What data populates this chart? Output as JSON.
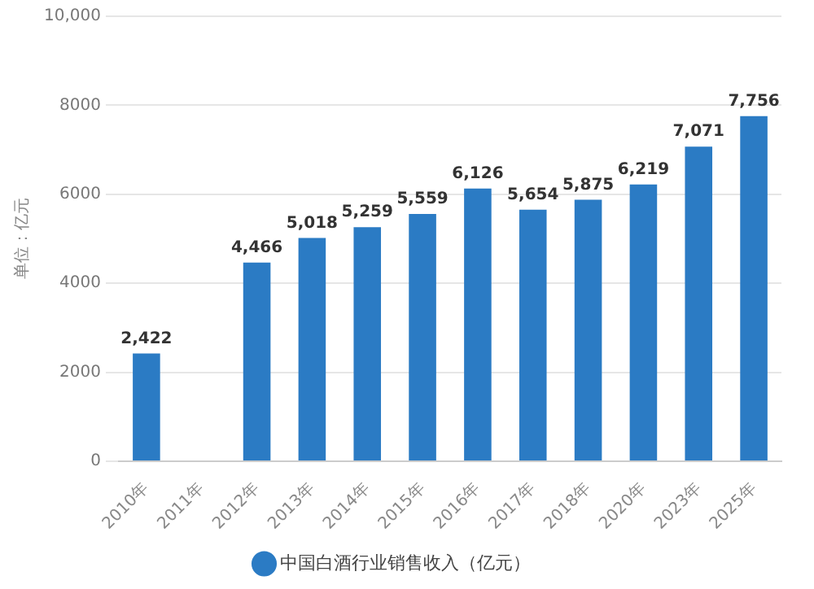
{
  "chart_data": {
    "type": "bar",
    "ylabel": "单位：亿元",
    "categories": [
      "2010年",
      "2011年",
      "2012年",
      "2013年",
      "2014年",
      "2015年",
      "2016年",
      "2017年",
      "2018年",
      "2020年",
      "2023年",
      "2025年"
    ],
    "series": [
      {
        "name": "中国白酒行业销售收入（亿元）",
        "color": "#2b7bc4",
        "values": [
          2422,
          null,
          4466,
          5018,
          5259,
          5559,
          6126,
          5654,
          5875,
          6219,
          7071,
          7756
        ],
        "value_labels": [
          "2,422",
          null,
          "4,466",
          "5,018",
          "5,259",
          "5,559",
          "6,126",
          "5,654",
          "5,875",
          "6,219",
          "7,071",
          "7,756"
        ]
      }
    ],
    "ylim": [
      0,
      10000
    ],
    "yticks": [
      0,
      2000,
      4000,
      6000,
      8000,
      {
        "value": 10000,
        "label": "10,000"
      }
    ],
    "grid": "y",
    "legend": "bottom"
  }
}
